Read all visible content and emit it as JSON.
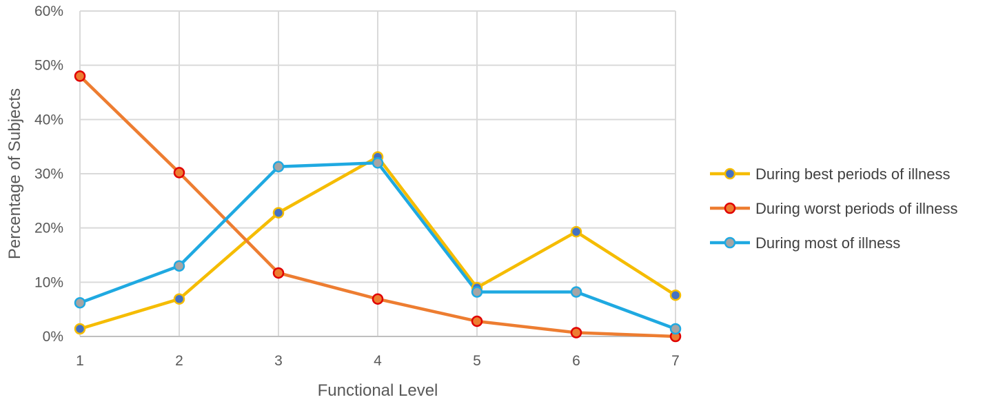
{
  "chart_data": {
    "type": "line",
    "x": [
      1,
      2,
      3,
      4,
      5,
      6,
      7
    ],
    "xlabel": "Functional Level",
    "ylabel": "Percentage of Subjects",
    "ylim": [
      0,
      60
    ],
    "yticks": [
      0,
      10,
      20,
      30,
      40,
      50,
      60
    ],
    "ytick_labels": [
      "0%",
      "10%",
      "20%",
      "30%",
      "40%",
      "50%",
      "60%"
    ],
    "xtick_labels": [
      "1",
      "2",
      "3",
      "4",
      "5",
      "6",
      "7"
    ],
    "grid": true,
    "legend_position": "right",
    "series": [
      {
        "name": "During best periods of illness",
        "values": [
          1.4,
          6.9,
          22.8,
          33.1,
          9.0,
          19.3,
          7.6
        ],
        "line_color": "#F5BC00",
        "marker_fill": "#4472C4",
        "marker_edge": "#F5BC00"
      },
      {
        "name": "During worst periods of illness",
        "values": [
          48.0,
          30.2,
          11.7,
          6.9,
          2.8,
          0.7,
          0.0
        ],
        "line_color": "#ED7D31",
        "marker_fill": "#ED7D31",
        "marker_edge": "#E00000"
      },
      {
        "name": "During most of illness",
        "values": [
          6.2,
          13.0,
          31.3,
          32.0,
          8.2,
          8.2,
          1.4
        ],
        "line_color": "#1FA9E1",
        "marker_fill": "#A5A5A5",
        "marker_edge": "#1FA9E1"
      }
    ]
  }
}
